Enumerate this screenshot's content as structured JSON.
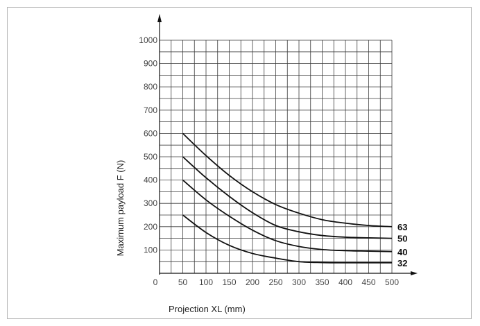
{
  "chart_data": {
    "type": "line",
    "xlabel": "Projection XL (mm)",
    "ylabel": "Maximum payload F (N)",
    "xlim": [
      0,
      500
    ],
    "ylim": [
      0,
      1000
    ],
    "x_ticks": [
      0,
      50,
      100,
      150,
      200,
      250,
      300,
      350,
      400,
      450,
      500
    ],
    "y_ticks": [
      100,
      200,
      300,
      400,
      500,
      600,
      700,
      800,
      900,
      1000
    ],
    "grid": true,
    "x_grid_step": 25,
    "y_grid_step": 50,
    "series": [
      {
        "name": "63",
        "x": [
          50,
          100,
          150,
          200,
          250,
          300,
          350,
          400,
          450,
          500
        ],
        "y": [
          600,
          505,
          420,
          350,
          295,
          258,
          230,
          215,
          205,
          200
        ]
      },
      {
        "name": "50",
        "x": [
          50,
          100,
          150,
          200,
          250,
          300,
          350,
          400,
          450,
          500
        ],
        "y": [
          500,
          410,
          330,
          260,
          205,
          178,
          162,
          155,
          152,
          150
        ]
      },
      {
        "name": "40",
        "x": [
          50,
          100,
          150,
          200,
          250,
          300,
          350,
          400,
          450,
          500
        ],
        "y": [
          400,
          315,
          245,
          185,
          140,
          115,
          102,
          97,
          95,
          93
        ]
      },
      {
        "name": "32",
        "x": [
          50,
          100,
          150,
          200,
          250,
          300,
          350,
          400,
          450,
          500
        ],
        "y": [
          250,
          175,
          120,
          85,
          65,
          50,
          46,
          45,
          45,
          45
        ]
      }
    ]
  }
}
